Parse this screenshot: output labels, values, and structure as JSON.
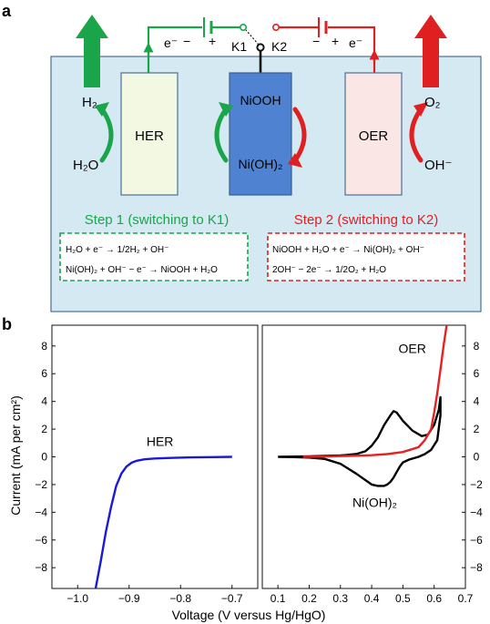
{
  "panel_a": {
    "label": "a",
    "switch_k1": "K1",
    "switch_k2": "K2",
    "left_circuit": {
      "electron": "e⁻",
      "minus": "−",
      "plus": "+"
    },
    "right_circuit": {
      "minus": "−",
      "plus": "+",
      "electron": "e⁻"
    },
    "her_electrode": "HER",
    "nickel_electrode": {
      "top": "NiOOH",
      "bottom": "Ni(OH)₂"
    },
    "oer_electrode": "OER",
    "left_species": {
      "top": "H₂",
      "bottom": "H₂O"
    },
    "right_species": {
      "top": "O₂",
      "bottom": "OH⁻"
    },
    "step1": {
      "title": "Step 1 (switching to K1)",
      "eq1": "H₂O + e⁻ → 1/2H₂ + OH⁻",
      "eq2": "Ni(OH)₂ + OH⁻ − e⁻ → NiOOH + H₂O"
    },
    "step2": {
      "title": "Step 2 (switching to K2)",
      "eq1": "NiOOH + H₂O + e⁻ → Ni(OH)₂ + OH⁻",
      "eq2": "2OH⁻ − 2e⁻ → 1/2O₂ + H₂O"
    },
    "colors": {
      "electrolyte": "#d5e9f3",
      "her_fill": "#f3f8e2",
      "nickel_fill": "#4f82d0",
      "oer_fill": "#fbe6e6",
      "green": "#1aa54b",
      "red": "#e02020",
      "frame": "#4c6f96"
    }
  },
  "panel_b": {
    "label": "b",
    "ylabel": "Current (mA per cm²)",
    "xlabel": "Voltage (V versus Hg/HgO)"
  },
  "chart_data": [
    {
      "type": "line",
      "xlabel": "",
      "ylabel": "Current (mA per cm²)",
      "xlim": [
        -1.05,
        -0.65
      ],
      "ylim": [
        -9.5,
        9.5
      ],
      "xticks": [
        -1.0,
        -0.9,
        -0.8,
        -0.7
      ],
      "xtick_labels": [
        "−1.0",
        "−0.9",
        "−0.8",
        "−0.7"
      ],
      "yticks": [
        8,
        6,
        4,
        2,
        0,
        -2,
        -4,
        -6,
        -8
      ],
      "ytick_labels": [
        "8",
        "6",
        "4",
        "2",
        "0",
        "−2",
        "−4",
        "−6",
        "−8"
      ],
      "annotations": [
        {
          "text": "HER",
          "x": -0.84,
          "y": 0.8
        }
      ],
      "series": [
        {
          "color": "#1a1ad6",
          "x": [
            -0.965,
            -0.955,
            -0.945,
            -0.935,
            -0.925,
            -0.915,
            -0.905,
            -0.895,
            -0.885,
            -0.87,
            -0.85,
            -0.82,
            -0.78,
            -0.74,
            -0.7
          ],
          "y": [
            -9.5,
            -7.5,
            -5.4,
            -3.6,
            -2.1,
            -1.2,
            -0.7,
            -0.42,
            -0.28,
            -0.18,
            -0.12,
            -0.08,
            -0.04,
            -0.02,
            0.0
          ]
        }
      ]
    },
    {
      "type": "line",
      "xlabel": "",
      "ylabel": "",
      "xlim": [
        0.05,
        0.7
      ],
      "ylim": [
        -9.5,
        9.5
      ],
      "xticks": [
        0.1,
        0.2,
        0.3,
        0.4,
        0.5,
        0.6,
        0.7
      ],
      "xtick_labels": [
        "0.1",
        "0.2",
        "0.3",
        "0.4",
        "0.5",
        "0.6",
        "0.7"
      ],
      "yticks": [
        8,
        6,
        4,
        2,
        0,
        -2,
        -4,
        -6,
        -8
      ],
      "ytick_labels": [
        "8",
        "6",
        "4",
        "2",
        "0",
        "−2",
        "−4",
        "−6",
        "−8"
      ],
      "annotations": [
        {
          "text": "OER",
          "x": 0.53,
          "y": 7.5
        },
        {
          "text": "Ni(OH)₂",
          "x": 0.41,
          "y": -3.6
        }
      ],
      "series": [
        {
          "color": "#000000",
          "x": [
            0.1,
            0.2,
            0.3,
            0.35,
            0.38,
            0.4,
            0.42,
            0.44,
            0.46,
            0.47,
            0.48,
            0.5,
            0.53,
            0.56,
            0.58,
            0.6,
            0.615,
            0.62,
            0.62,
            0.61,
            0.59,
            0.57,
            0.55,
            0.52,
            0.5,
            0.49,
            0.48,
            0.47,
            0.46,
            0.45,
            0.44,
            0.42,
            0.4,
            0.35,
            0.3,
            0.25,
            0.2,
            0.15,
            0.1
          ],
          "y": [
            0.0,
            0.03,
            0.1,
            0.2,
            0.4,
            0.8,
            1.4,
            2.3,
            3.0,
            3.3,
            3.2,
            2.6,
            1.9,
            1.5,
            1.6,
            2.3,
            3.4,
            4.3,
            3.0,
            1.2,
            0.5,
            0.2,
            0.0,
            -0.2,
            -0.4,
            -0.7,
            -1.1,
            -1.5,
            -1.8,
            -2.0,
            -2.1,
            -2.1,
            -2.0,
            -1.2,
            -0.5,
            -0.15,
            -0.05,
            -0.02,
            0.0
          ]
        },
        {
          "color": "#e52222",
          "x": [
            0.18,
            0.25,
            0.3,
            0.35,
            0.4,
            0.45,
            0.5,
            0.55,
            0.57,
            0.59,
            0.6,
            0.61,
            0.62,
            0.63,
            0.64
          ],
          "y": [
            0.0,
            0.02,
            0.05,
            0.08,
            0.12,
            0.2,
            0.35,
            0.7,
            1.2,
            2.0,
            3.2,
            4.6,
            6.3,
            8.0,
            9.5
          ]
        }
      ]
    }
  ]
}
